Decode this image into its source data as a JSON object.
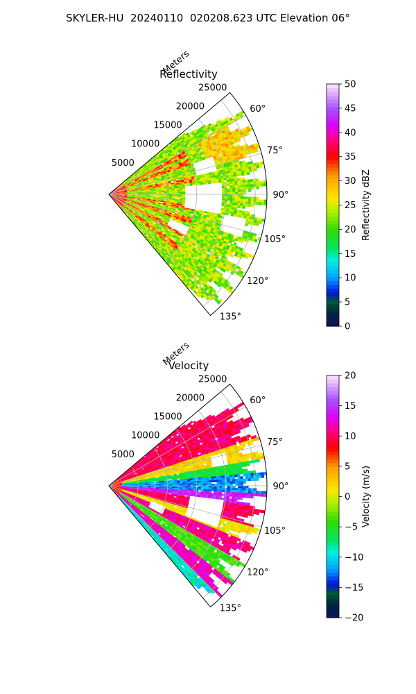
{
  "figure": {
    "title": "SKYLER-HU  20240110  020208.623 UTC Elevation 06°"
  },
  "chart_data": [
    {
      "type": "heatmap",
      "projection": "polar-sector",
      "title": "Reflectivity",
      "radial_label": "Meters",
      "radial_ticks": [
        5000,
        10000,
        15000,
        20000,
        25000
      ],
      "rlim": [
        0,
        27000
      ],
      "azimuth_range_deg": [
        50,
        140
      ],
      "azimuth_ticks": [
        60,
        75,
        90,
        105,
        120,
        135
      ],
      "azimuth_tick_labels": [
        "60°",
        "75°",
        "90°",
        "105°",
        "120°",
        "135°"
      ],
      "grid": true,
      "colorbar": {
        "label": "Reflectivity dBZ",
        "range": [
          0,
          50
        ],
        "ticks": [
          0,
          5,
          10,
          15,
          20,
          25,
          30,
          35,
          40,
          45,
          50
        ],
        "colormap": "pyart_HomeyerRainbow"
      },
      "field_description": "Mostly 18–28 dBZ across sector, higher streaks 30–38 dBZ near origin and in bands; gaps (no data) between 85°–110° mid-range",
      "typical_value": 23
    },
    {
      "type": "heatmap",
      "projection": "polar-sector",
      "title": "Velocity",
      "radial_label": "Meters",
      "radial_ticks": [
        5000,
        10000,
        15000,
        20000,
        25000
      ],
      "rlim": [
        0,
        27000
      ],
      "azimuth_range_deg": [
        50,
        140
      ],
      "azimuth_ticks": [
        60,
        75,
        90,
        105,
        120,
        135
      ],
      "azimuth_tick_labels": [
        "60°",
        "75°",
        "90°",
        "105°",
        "120°",
        "135°"
      ],
      "grid": true,
      "colorbar": {
        "label": "Velocity (m/s)",
        "range": [
          -20,
          20
        ],
        "ticks": [
          -20,
          -15,
          -10,
          -5,
          0,
          5,
          10,
          15,
          20
        ],
        "colormap": "pyart_HomeyerRainbow"
      },
      "field_description": "Band structure: ~+10 m/s at 55°–70°, ~0 to +3 m/s at 75°–82°, -10 to -13 m/s near 85°–92°, +12 to +17 m/s at 95°–105°, alternating bands toward 140°",
      "bands": [
        {
          "az": [
            50,
            72
          ],
          "value": 10
        },
        {
          "az": [
            72,
            80
          ],
          "value": 2
        },
        {
          "az": [
            80,
            85
          ],
          "value": -6
        },
        {
          "az": [
            85,
            93
          ],
          "value": -12
        },
        {
          "az": [
            93,
            98
          ],
          "value": 14
        },
        {
          "az": [
            98,
            106
          ],
          "value": 10
        },
        {
          "az": [
            106,
            112
          ],
          "value": 1
        },
        {
          "az": [
            112,
            120
          ],
          "value": 11
        },
        {
          "az": [
            120,
            128
          ],
          "value": -4
        },
        {
          "az": [
            128,
            135
          ],
          "value": 12
        },
        {
          "az": [
            135,
            140
          ],
          "value": -9
        }
      ]
    }
  ]
}
